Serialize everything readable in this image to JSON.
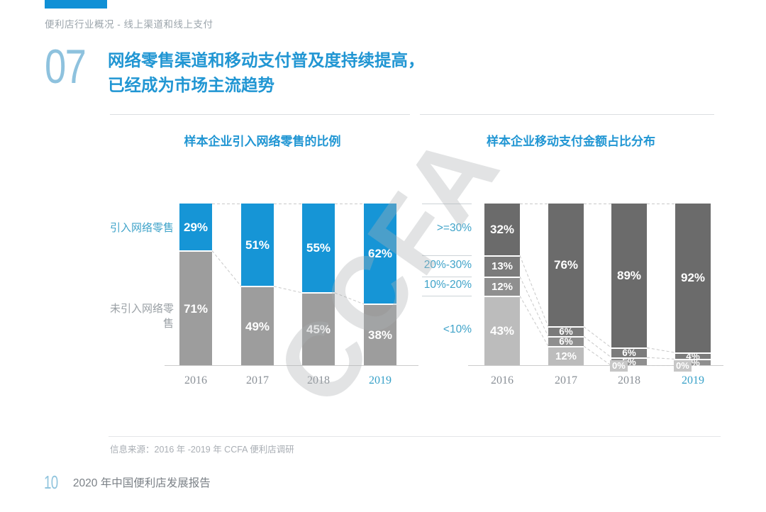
{
  "page": {
    "breadcrumb": "便利店行业概况 - 线上渠道和线上支付",
    "section_number": "07",
    "title_line1": "网络零售渠道和移动支付普及度持续提高，",
    "title_line2": "已经成为市场主流趋势",
    "watermark": "CCFA",
    "source_note": "信息来源：2016 年 -2019 年 CCFA 便利店调研",
    "page_number": "10",
    "footer_title": "2020 年中国便利店发展报告"
  },
  "colors": {
    "accent_blue": "#1695d6",
    "bar_gray": "#9d9d9d",
    "seg_dark": "#6b6b6b",
    "seg_mid": "#7b7b7b",
    "seg_light_mid": "#8f8f8f",
    "seg_light": "#bcbcbc",
    "title_blue": "#2196d3",
    "axis_label_blue": "#3fa3c9",
    "year_gray": "#8a9097",
    "year_highlight_blue": "#36a0c8",
    "dash_gray": "#c8c8c8",
    "zero_chip_gray": "#c6c6c6"
  },
  "chart_data": [
    {
      "type": "bar",
      "stacked": true,
      "orientation": "vertical",
      "title": "样本企业引入网络零售的比例",
      "categories": [
        "2016",
        "2017",
        "2018",
        "2019"
      ],
      "category_label_colors": [
        "#8a9097",
        "#8a9097",
        "#8a9097",
        "#36a0c8"
      ],
      "series": [
        {
          "name": "引入网络零售",
          "color_key": "accent_blue",
          "label_color": "#3fa3c9",
          "values": [
            29,
            51,
            55,
            62
          ]
        },
        {
          "name": "未引入网络零售",
          "color_key": "bar_gray",
          "label_color": "#9aa0a5",
          "values": [
            71,
            49,
            45,
            38
          ]
        }
      ],
      "value_suffix": "%",
      "ylim": [
        0,
        100
      ],
      "grid": false,
      "legend_position": "left"
    },
    {
      "type": "bar",
      "stacked": true,
      "orientation": "vertical",
      "title": "样本企业移动支付金额占比分布",
      "categories": [
        "2016",
        "2017",
        "2018",
        "2019"
      ],
      "category_label_colors": [
        "#8a9097",
        "#8a9097",
        "#8a9097",
        "#36a0c8"
      ],
      "series": [
        {
          "name": ">=30%",
          "color_key": "seg_dark",
          "label_color": "#3fa3c9",
          "values": [
            32,
            76,
            89,
            92
          ]
        },
        {
          "name": "20%-30%",
          "color_key": "seg_mid",
          "label_color": "#3fa3c9",
          "values": [
            13,
            6,
            6,
            4
          ]
        },
        {
          "name": "10%-20%",
          "color_key": "seg_light_mid",
          "label_color": "#3fa3c9",
          "values": [
            12,
            6,
            5,
            4
          ]
        },
        {
          "name": "<10%",
          "color_key": "seg_light",
          "label_color": "#3fa3c9",
          "values": [
            43,
            12,
            0,
            0
          ]
        }
      ],
      "value_suffix": "%",
      "ylim": [
        0,
        100
      ],
      "grid": false,
      "legend_position": "left-axis"
    }
  ]
}
